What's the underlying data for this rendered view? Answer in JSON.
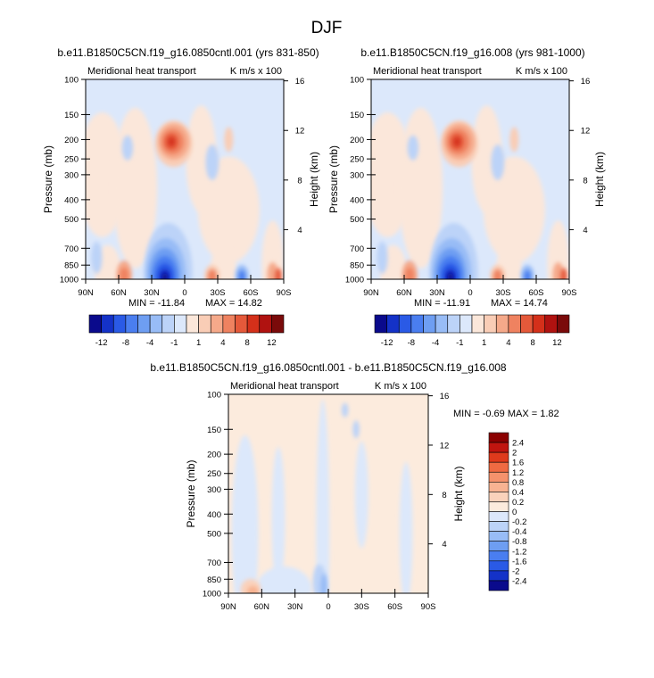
{
  "page_title": "DJF",
  "chart_data": [
    {
      "type": "contour",
      "title": "b.e11.B1850C5CN.f19_g16.0850cntl.001 (yrs 831-850)",
      "left_string": "Meridional heat transport",
      "right_string": "K m/s x 100",
      "ylabel": "Pressure (mb)",
      "ylabel_right": "Height (km)",
      "pressure_ticks": [
        100,
        150,
        200,
        250,
        300,
        400,
        500,
        700,
        850,
        1000
      ],
      "height_ticks": [
        16,
        12,
        8,
        4
      ],
      "x_ticks": [
        "90N",
        "60N",
        "30N",
        "0",
        "30S",
        "60S",
        "90S"
      ],
      "x_values": [
        90,
        60,
        30,
        0,
        -30,
        -60,
        -90
      ],
      "min_label": "MIN = -11.84",
      "max_label": "MAX =  14.82",
      "min": -11.84,
      "max": 14.82,
      "colorbar_labels": [
        "-12",
        "-8",
        "-4",
        "-1",
        "1",
        "4",
        "8",
        "12"
      ],
      "colorbar_colors": [
        "#0a0a8c",
        "#1432c8",
        "#2a5ae6",
        "#4a7ef0",
        "#6e9ef2",
        "#98bcf6",
        "#bcd3f8",
        "#dce8fb",
        "#fbe7da",
        "#f9cdb6",
        "#f5a98a",
        "#ef8260",
        "#e5593a",
        "#d4301a",
        "#b01210",
        "#7a0a0a"
      ]
    },
    {
      "type": "contour",
      "title": "b.e11.B1850C5CN.f19_g16.008 (yrs 981-1000)",
      "left_string": "Meridional heat transport",
      "right_string": "K m/s x 100",
      "ylabel": "Pressure (mb)",
      "ylabel_right": "Height (km)",
      "pressure_ticks": [
        100,
        150,
        200,
        250,
        300,
        400,
        500,
        700,
        850,
        1000
      ],
      "height_ticks": [
        16,
        12,
        8,
        4
      ],
      "x_ticks": [
        "90N",
        "60N",
        "30N",
        "0",
        "30S",
        "60S",
        "90S"
      ],
      "x_values": [
        90,
        60,
        30,
        0,
        -30,
        -60,
        -90
      ],
      "min_label": "MIN = -11.91",
      "max_label": "MAX =  14.74",
      "min": -11.91,
      "max": 14.74,
      "colorbar_labels": [
        "-12",
        "-8",
        "-4",
        "-1",
        "1",
        "4",
        "8",
        "12"
      ],
      "colorbar_colors": [
        "#0a0a8c",
        "#1432c8",
        "#2a5ae6",
        "#4a7ef0",
        "#6e9ef2",
        "#98bcf6",
        "#bcd3f8",
        "#dce8fb",
        "#fbe7da",
        "#f9cdb6",
        "#f5a98a",
        "#ef8260",
        "#e5593a",
        "#d4301a",
        "#b01210",
        "#7a0a0a"
      ]
    },
    {
      "type": "contour",
      "title": "b.e11.B1850C5CN.f19_g16.0850cntl.001 - b.e11.B1850C5CN.f19_g16.008",
      "left_string": "Meridional heat transport",
      "right_string": "K m/s x 100",
      "ylabel": "Pressure (mb)",
      "ylabel_right": "Height (km)",
      "pressure_ticks": [
        100,
        150,
        200,
        250,
        300,
        400,
        500,
        700,
        850,
        1000
      ],
      "height_ticks": [
        16,
        12,
        8,
        4
      ],
      "x_ticks": [
        "90N",
        "60N",
        "30N",
        "0",
        "30S",
        "60S",
        "90S"
      ],
      "x_values": [
        90,
        60,
        30,
        0,
        -30,
        -60,
        -90
      ],
      "minmax_label": "MIN =  -0.69   MAX =   1.82",
      "min": -0.69,
      "max": 1.82,
      "colorbar_labels": [
        "2.4",
        "2",
        "1.6",
        "1.2",
        "0.8",
        "0.4",
        "0.2",
        "0",
        "-0.2",
        "-0.4",
        "-0.8",
        "-1.2",
        "-1.6",
        "-2",
        "-2.4"
      ],
      "colorbar_colors": [
        "#8b0000",
        "#c0150f",
        "#df3a1c",
        "#ef6a42",
        "#f5926c",
        "#f8b392",
        "#fad2bb",
        "#fcebdd",
        "#dce8fb",
        "#bcd3f8",
        "#98bcf6",
        "#6e9ef2",
        "#4a7ef0",
        "#2a5ae6",
        "#1432c8",
        "#0a0a8c"
      ]
    }
  ]
}
